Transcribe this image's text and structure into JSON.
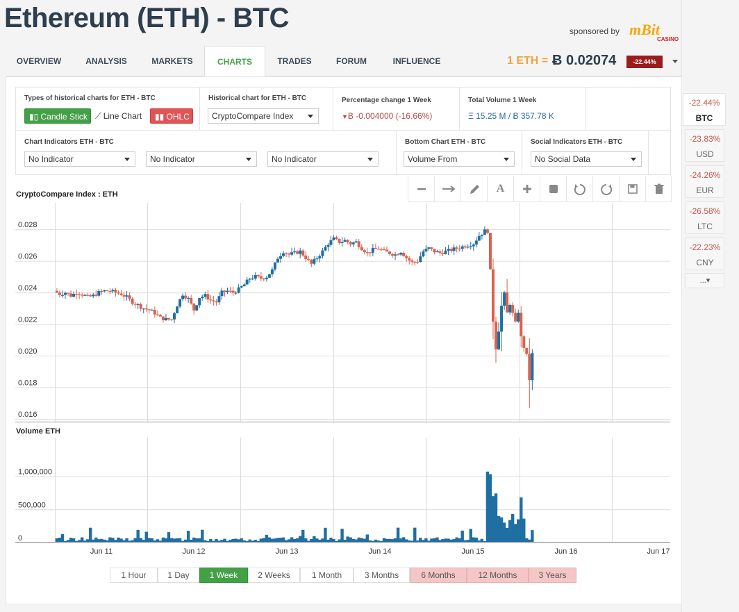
{
  "header": {
    "title": "Ethereum (ETH) - BTC",
    "sponsored_by": "sponsored by",
    "sponsor_logo": "mBit",
    "sponsor_logo_sub": "CASINO"
  },
  "tabs": [
    {
      "label": "OVERVIEW"
    },
    {
      "label": "ANALYSIS"
    },
    {
      "label": "MARKETS"
    },
    {
      "label": "CHARTS"
    },
    {
      "label": "TRADES"
    },
    {
      "label": "FORUM"
    },
    {
      "label": "INFLUENCE"
    }
  ],
  "active_tab": "CHARTS",
  "price": {
    "label": "1 ETH =",
    "value": "Ƀ 0.02074",
    "change": "-22.44%"
  },
  "options": {
    "chart_types_title": "Types of historical charts for ETH - BTC",
    "candle_stick": "Candle Stick",
    "line_chart": "Line Chart",
    "ohlc": "OHLC",
    "historical_title": "Historical chart for ETH - BTC",
    "historical_select": "CryptoCompare Index",
    "pct_change_title": "Percentage change 1 Week",
    "pct_change_value": "Ƀ -0.004000 (-16.66%)",
    "volume_title": "Total Volume 1 Week",
    "volume_value": "Ξ 15.25 M / Ƀ 357.78 K",
    "indicators_title": "Chart Indicators ETH - BTC",
    "indicator_1": "No Indicator",
    "indicator_2": "No Indicator",
    "indicator_3": "No Indicator",
    "bottom_title": "Bottom Chart ETH - BTC",
    "bottom_select": "Volume From",
    "social_title": "Social Indicators ETH - BTC",
    "social_select": "No Social Data"
  },
  "toolbar_icons": [
    "minus-icon",
    "arrow-right-icon",
    "pencil-icon",
    "text-icon",
    "plus-icon",
    "square-icon",
    "undo-icon",
    "redo-icon",
    "save-icon",
    "trash-icon"
  ],
  "chart_data": [
    {
      "type": "candlestick",
      "title": "CryptoCompare Index : ETH",
      "x_ticks": [
        "Jun 11",
        "Jun 12",
        "Jun 13",
        "Jun 14",
        "Jun 15",
        "Jun 16",
        "Jun 17"
      ],
      "y_ticks": [
        "0.028",
        "0.026",
        "0.024",
        "0.022",
        "0.020",
        "0.018",
        "0.016"
      ],
      "ylim": [
        0.016,
        0.0295
      ],
      "grid": true,
      "up_color": "#1f6fa3",
      "down_color": "#d9624f",
      "close_path": [
        [
          0.0,
          0.0241
        ],
        [
          0.06,
          0.0239
        ],
        [
          0.12,
          0.024
        ],
        [
          0.18,
          0.0238
        ],
        [
          0.24,
          0.024
        ],
        [
          0.3,
          0.0239
        ],
        [
          0.36,
          0.0237
        ],
        [
          0.42,
          0.0238
        ],
        [
          0.48,
          0.024
        ],
        [
          0.54,
          0.0241
        ],
        [
          0.6,
          0.0241
        ],
        [
          0.66,
          0.024
        ],
        [
          0.72,
          0.0239
        ],
        [
          0.78,
          0.0237
        ],
        [
          0.84,
          0.0234
        ],
        [
          0.9,
          0.0232
        ],
        [
          0.96,
          0.023
        ],
        [
          1.02,
          0.0229
        ],
        [
          1.08,
          0.0227
        ],
        [
          1.14,
          0.0224
        ],
        [
          1.2,
          0.0223
        ],
        [
          1.26,
          0.0223
        ],
        [
          1.32,
          0.0232
        ],
        [
          1.38,
          0.0239
        ],
        [
          1.44,
          0.0236
        ],
        [
          1.5,
          0.0229
        ],
        [
          1.56,
          0.0237
        ],
        [
          1.62,
          0.0238
        ],
        [
          1.68,
          0.0235
        ],
        [
          1.74,
          0.0234
        ],
        [
          1.8,
          0.024
        ],
        [
          1.86,
          0.0241
        ],
        [
          1.92,
          0.024
        ],
        [
          1.98,
          0.0242
        ],
        [
          2.04,
          0.0245
        ],
        [
          2.1,
          0.0249
        ],
        [
          2.16,
          0.025
        ],
        [
          2.22,
          0.0249
        ],
        [
          2.28,
          0.025
        ],
        [
          2.34,
          0.0254
        ],
        [
          2.4,
          0.0262
        ],
        [
          2.46,
          0.0266
        ],
        [
          2.52,
          0.0264
        ],
        [
          2.58,
          0.0265
        ],
        [
          2.64,
          0.0266
        ],
        [
          2.7,
          0.0262
        ],
        [
          2.76,
          0.0258
        ],
        [
          2.82,
          0.0262
        ],
        [
          2.88,
          0.0266
        ],
        [
          2.94,
          0.0271
        ],
        [
          3.0,
          0.0274
        ],
        [
          3.06,
          0.0272
        ],
        [
          3.12,
          0.0273
        ],
        [
          3.18,
          0.0271
        ],
        [
          3.24,
          0.0272
        ],
        [
          3.3,
          0.0268
        ],
        [
          3.36,
          0.0265
        ],
        [
          3.42,
          0.0267
        ],
        [
          3.48,
          0.0268
        ],
        [
          3.54,
          0.0266
        ],
        [
          3.6,
          0.0265
        ],
        [
          3.66,
          0.0264
        ],
        [
          3.72,
          0.0266
        ],
        [
          3.78,
          0.0262
        ],
        [
          3.84,
          0.0259
        ],
        [
          3.9,
          0.026
        ],
        [
          3.96,
          0.0266
        ],
        [
          4.02,
          0.0268
        ],
        [
          4.08,
          0.0266
        ],
        [
          4.14,
          0.0265
        ],
        [
          4.2,
          0.0266
        ],
        [
          4.26,
          0.0267
        ],
        [
          4.32,
          0.0268
        ],
        [
          4.38,
          0.0269
        ],
        [
          4.44,
          0.027
        ],
        [
          4.5,
          0.0271
        ],
        [
          4.56,
          0.0276
        ],
        [
          4.62,
          0.0279
        ],
        [
          4.66,
          0.0279
        ],
        [
          4.7,
          0.0228
        ],
        [
          4.74,
          0.0205
        ],
        [
          4.78,
          0.022
        ],
        [
          4.82,
          0.0243
        ],
        [
          4.86,
          0.0227
        ],
        [
          4.9,
          0.0235
        ],
        [
          4.94,
          0.0218
        ],
        [
          4.98,
          0.0228
        ],
        [
          5.02,
          0.0206
        ],
        [
          5.06,
          0.0205
        ],
        [
          5.1,
          0.0185
        ],
        [
          5.13,
          0.0201
        ]
      ]
    },
    {
      "type": "bar",
      "title": "Volume ETH",
      "y_ticks": [
        "1,000,000",
        "500,000",
        "0"
      ],
      "ylim": [
        0,
        1540000
      ],
      "bar_color": "#1f6fa3",
      "spikes": [
        [
          4.65,
          1070000
        ],
        [
          4.68,
          1030000
        ],
        [
          4.71,
          700000
        ],
        [
          4.74,
          740000
        ],
        [
          4.77,
          400000
        ],
        [
          4.8,
          380000
        ],
        [
          4.83,
          300000
        ],
        [
          4.86,
          220000
        ],
        [
          4.89,
          340000
        ],
        [
          4.92,
          430000
        ],
        [
          4.95,
          280000
        ],
        [
          4.98,
          350000
        ],
        [
          5.01,
          680000
        ],
        [
          5.04,
          360000
        ]
      ]
    }
  ],
  "time_ranges": [
    {
      "label": "1 Hour"
    },
    {
      "label": "1 Day"
    },
    {
      "label": "1 Week"
    },
    {
      "label": "2 Weeks"
    },
    {
      "label": "1 Month"
    },
    {
      "label": "3 Months"
    },
    {
      "label": "6 Months"
    },
    {
      "label": "12 Months"
    },
    {
      "label": "3 Years"
    }
  ],
  "selected_range": "1 Week",
  "sidebar": [
    {
      "change": "-22.44%",
      "currency": "BTC"
    },
    {
      "change": "-23.83%",
      "currency": "USD"
    },
    {
      "change": "-24.26%",
      "currency": "EUR"
    },
    {
      "change": "-26.58%",
      "currency": "LTC"
    },
    {
      "change": "-22.23%",
      "currency": "CNY"
    }
  ],
  "sidebar_more": "...▾"
}
